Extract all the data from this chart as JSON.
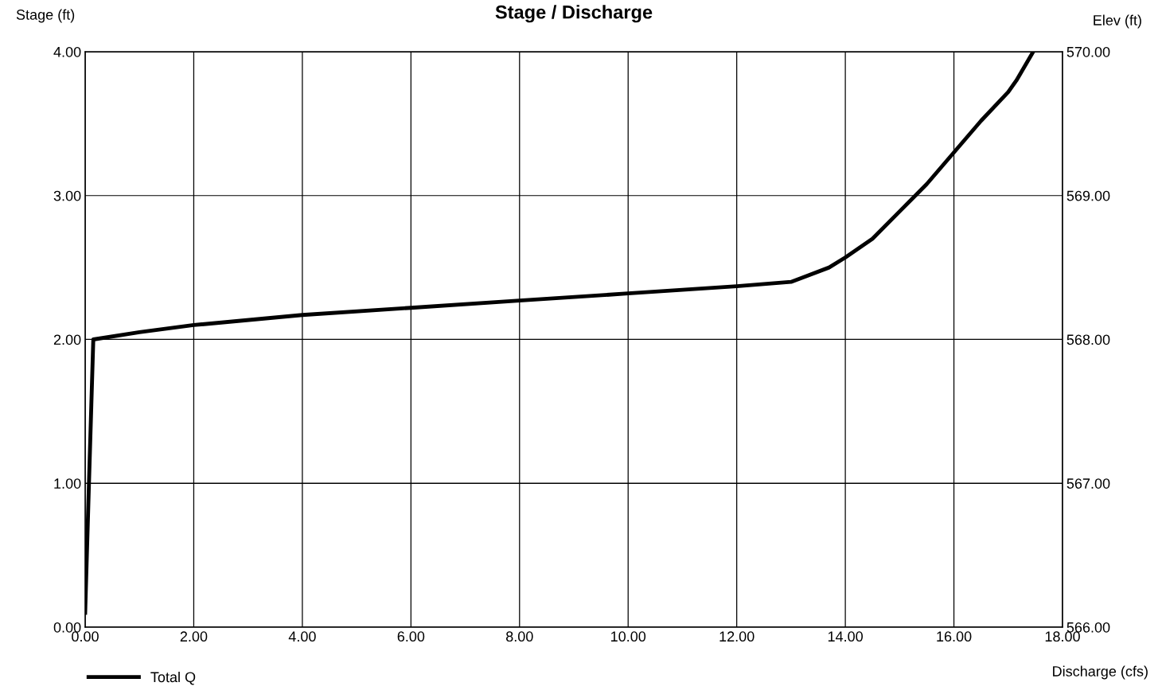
{
  "chart_data": {
    "type": "line",
    "title": "Stage / Discharge",
    "xlabel": "Discharge (cfs)",
    "ylabel": "Stage (ft)",
    "y2label": "Elev (ft)",
    "series": [
      {
        "name": "Total Q",
        "color": "#000000",
        "x": [
          0.0,
          0.07,
          0.15,
          1.0,
          2.0,
          4.0,
          6.0,
          8.0,
          10.0,
          12.0,
          13.0,
          13.7,
          14.0,
          14.5,
          15.0,
          15.5,
          16.0,
          16.5,
          17.0,
          17.15,
          17.46
        ],
        "values": [
          0.1,
          1.0,
          2.0,
          2.05,
          2.1,
          2.17,
          2.22,
          2.27,
          2.32,
          2.37,
          2.4,
          2.5,
          2.57,
          2.7,
          2.89,
          3.08,
          3.3,
          3.52,
          3.72,
          3.8,
          4.0
        ]
      }
    ],
    "xlim": [
      0,
      18
    ],
    "ylim": [
      0,
      4
    ],
    "y2lim": [
      566,
      570
    ],
    "xticks": [
      {
        "value": 0,
        "label": "0.00"
      },
      {
        "value": 2,
        "label": "2.00"
      },
      {
        "value": 4,
        "label": "4.00"
      },
      {
        "value": 6,
        "label": "6.00"
      },
      {
        "value": 8,
        "label": "8.00"
      },
      {
        "value": 10,
        "label": "10.00"
      },
      {
        "value": 12,
        "label": "12.00"
      },
      {
        "value": 14,
        "label": "14.00"
      },
      {
        "value": 16,
        "label": "16.00"
      },
      {
        "value": 18,
        "label": "18.00"
      }
    ],
    "yticks": [
      {
        "value": 0,
        "label": "0.00"
      },
      {
        "value": 1,
        "label": "1.00"
      },
      {
        "value": 2,
        "label": "2.00"
      },
      {
        "value": 3,
        "label": "3.00"
      },
      {
        "value": 4,
        "label": "4.00"
      }
    ],
    "y2ticks": [
      {
        "value": 566,
        "label": "566.00"
      },
      {
        "value": 567,
        "label": "567.00"
      },
      {
        "value": 568,
        "label": "568.00"
      },
      {
        "value": 569,
        "label": "569.00"
      },
      {
        "value": 570,
        "label": "570.00"
      }
    ],
    "grid": true,
    "legend": "bottom left",
    "marker": "none",
    "line_style": "solid"
  }
}
